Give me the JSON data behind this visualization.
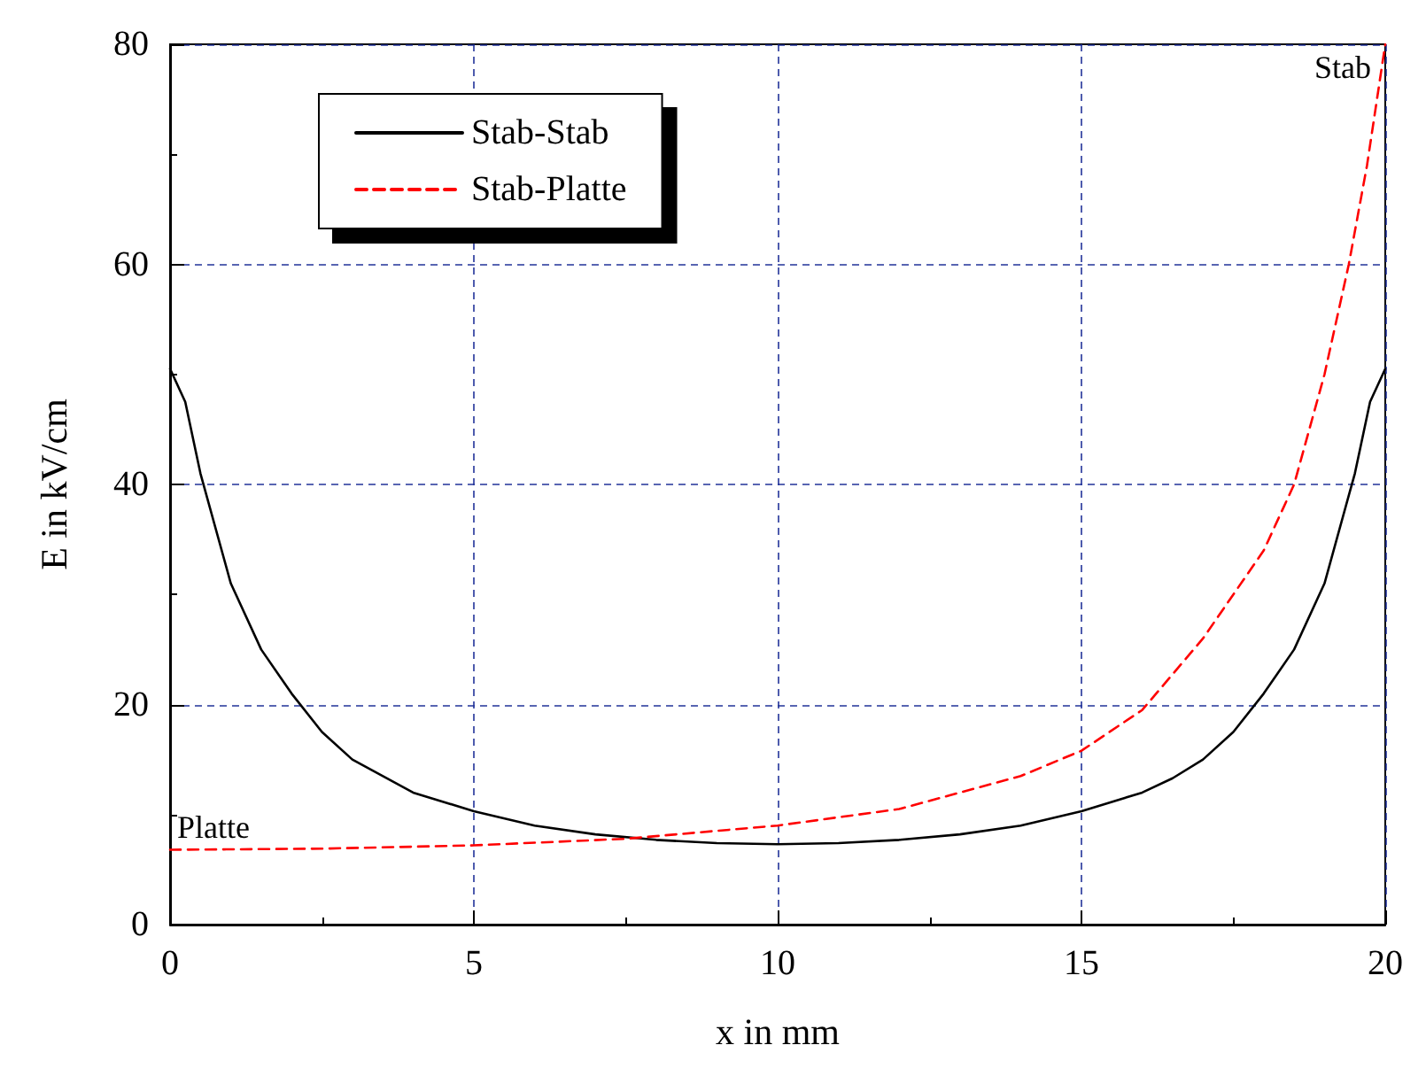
{
  "chart_data": {
    "type": "line",
    "xlabel": "x in mm",
    "ylabel": "E in kV/cm",
    "xlim": [
      0,
      20
    ],
    "ylim": [
      0,
      80
    ],
    "xticks": [
      0,
      5,
      10,
      15,
      20
    ],
    "yticks": [
      0,
      20,
      40,
      60,
      80
    ],
    "grid": true,
    "legend": "top left",
    "marker": "none",
    "series": [
      {
        "name": "Stab-Stab",
        "color": "#000000",
        "line_style": "solid",
        "x": [
          0,
          0.25,
          0.5,
          1,
          1.5,
          2,
          2.5,
          3,
          4,
          5,
          6,
          7,
          8,
          9,
          10,
          11,
          12,
          13,
          14,
          15,
          16,
          16.5,
          17,
          17.5,
          18,
          18.5,
          19,
          19.5,
          19.75,
          20
        ],
        "values": [
          50.5,
          47.5,
          41,
          31,
          25,
          21,
          17.5,
          15,
          12,
          10.3,
          9,
          8.2,
          7.7,
          7.4,
          7.3,
          7.4,
          7.7,
          8.2,
          9,
          10.3,
          12,
          13.3,
          15,
          17.5,
          21,
          25,
          31,
          41,
          47.5,
          50.5
        ]
      },
      {
        "name": "Stab-Platte",
        "color": "#ff0000",
        "line_style": "dashed",
        "x": [
          0,
          2.5,
          5,
          7.5,
          10,
          12,
          14,
          15,
          16,
          17,
          18,
          18.5,
          19,
          19.4,
          19.7,
          20
        ],
        "values": [
          6.8,
          6.9,
          7.2,
          7.8,
          9,
          10.5,
          13.5,
          15.8,
          19.5,
          26,
          34,
          40,
          50,
          60,
          69,
          80
        ]
      }
    ],
    "annotations": [
      {
        "text": "Stab",
        "x": 20,
        "y": 80
      },
      {
        "text": "Platte",
        "x": 0,
        "y": 6.8
      }
    ]
  }
}
